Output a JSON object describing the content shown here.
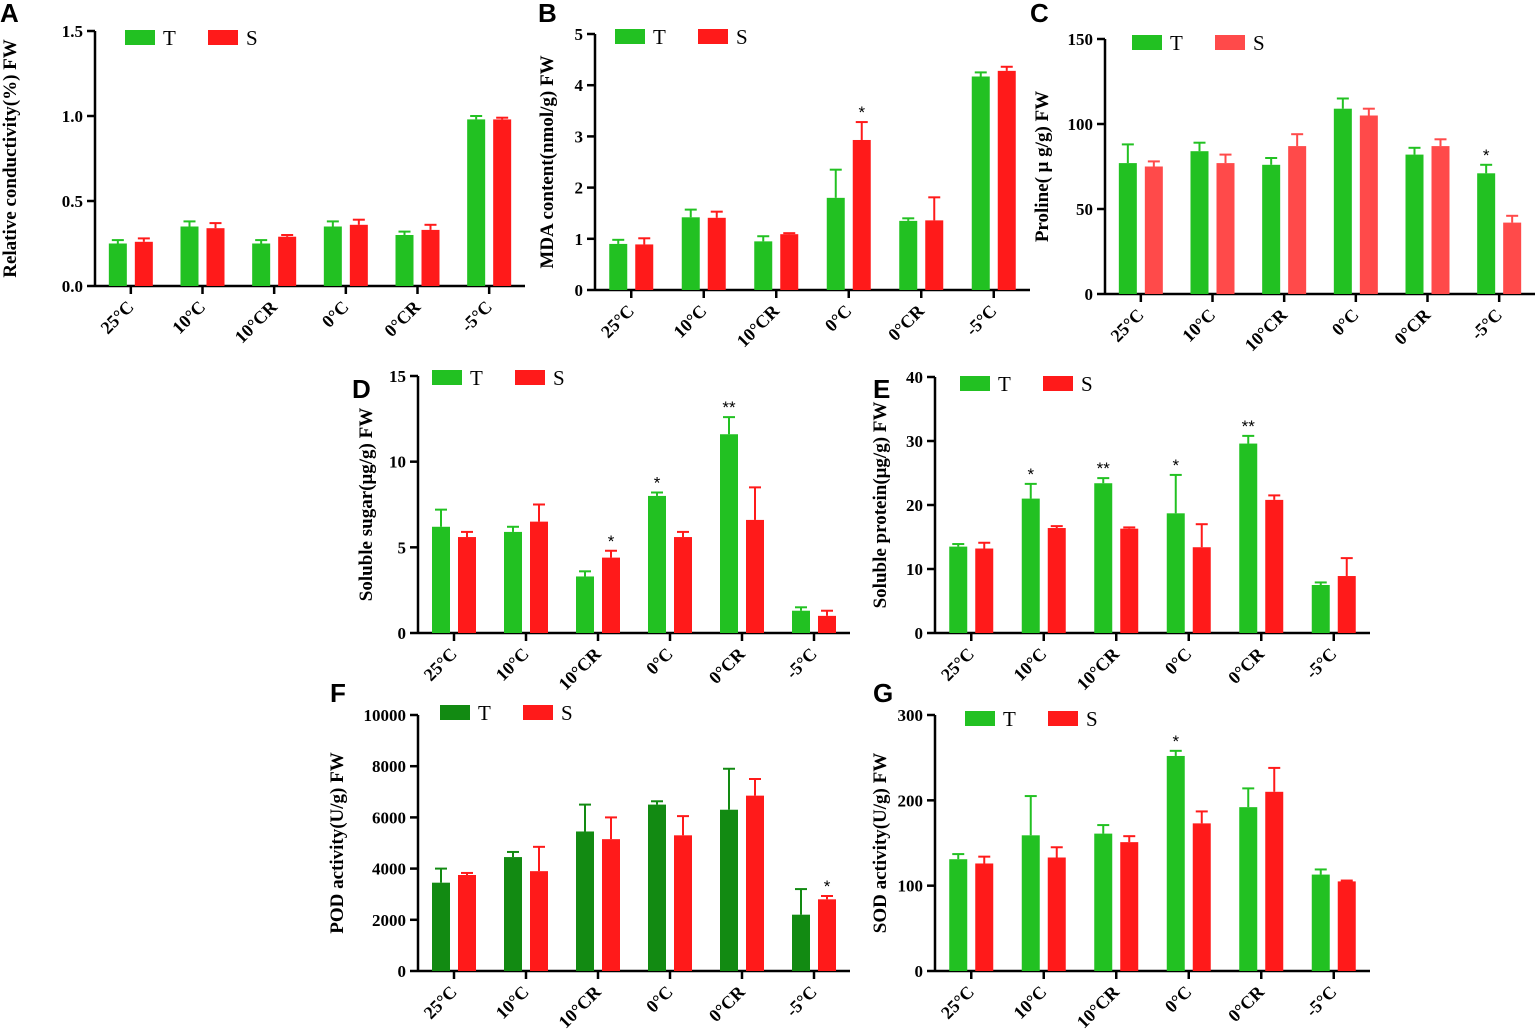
{
  "figure": {
    "panel_letters": [
      "A",
      "B",
      "C",
      "D",
      "E",
      "F",
      "G"
    ],
    "categories": [
      "25°C",
      "10°C",
      "10°CR",
      "0°C",
      "0°CR",
      "-5°C"
    ],
    "legend": [
      "T",
      "S"
    ]
  },
  "chart_data": [
    {
      "type": "bar",
      "panel": "A",
      "title": "",
      "xlabel": "",
      "ylabel": "Relative conductivity(%) FW",
      "ylim": [
        0,
        1.5
      ],
      "yticks": [
        0.0,
        0.5,
        1.0,
        1.5
      ],
      "ytick_labels": [
        "0.0",
        "0.5",
        "1.0",
        "1.5"
      ],
      "categories": [
        "25°C",
        "10°C",
        "10°CR",
        "0°C",
        "0°CR",
        "-5°C"
      ],
      "series": [
        {
          "name": "T",
          "color": "#22c122",
          "values": [
            0.25,
            0.35,
            0.25,
            0.35,
            0.3,
            0.98
          ],
          "errors": [
            0.02,
            0.03,
            0.02,
            0.03,
            0.02,
            0.02
          ],
          "significance": [
            "",
            "",
            "",
            "",
            "",
            ""
          ]
        },
        {
          "name": "S",
          "color": "#ff1a1a",
          "values": [
            0.26,
            0.34,
            0.29,
            0.36,
            0.33,
            0.98
          ],
          "errors": [
            0.02,
            0.03,
            0.01,
            0.03,
            0.03,
            0.01
          ],
          "significance": [
            "",
            "",
            "",
            "",
            "",
            ""
          ]
        }
      ],
      "legend_position": "top-left"
    },
    {
      "type": "bar",
      "panel": "B",
      "title": "",
      "xlabel": "",
      "ylabel": "MDA content(nmol/g) FW",
      "ylim": [
        0,
        5
      ],
      "yticks": [
        0,
        1,
        2,
        3,
        4,
        5
      ],
      "ytick_labels": [
        "0",
        "1",
        "2",
        "3",
        "4",
        "5"
      ],
      "categories": [
        "25°C",
        "10°C",
        "10°CR",
        "0°C",
        "0°CR",
        "-5°C"
      ],
      "series": [
        {
          "name": "T",
          "color": "#22c122",
          "values": [
            0.9,
            1.42,
            0.95,
            1.8,
            1.35,
            4.17
          ],
          "errors": [
            0.08,
            0.15,
            0.1,
            0.55,
            0.05,
            0.08
          ],
          "significance": [
            "",
            "",
            "",
            "",
            "",
            ""
          ]
        },
        {
          "name": "S",
          "color": "#ff1a1a",
          "values": [
            0.89,
            1.41,
            1.09,
            2.93,
            1.36,
            4.28
          ],
          "errors": [
            0.12,
            0.12,
            0.02,
            0.35,
            0.45,
            0.08
          ],
          "significance": [
            "",
            "",
            "",
            "*",
            "",
            ""
          ]
        }
      ],
      "legend_position": "top-left"
    },
    {
      "type": "bar",
      "panel": "C",
      "title": "",
      "xlabel": "",
      "ylabel": "Proline( μ g/g) FW",
      "ylim": [
        0,
        150
      ],
      "yticks": [
        0,
        50,
        100,
        150
      ],
      "ytick_labels": [
        "0",
        "50",
        "100",
        "150"
      ],
      "categories": [
        "25°C",
        "10°C",
        "10°CR",
        "0°C",
        "0°CR",
        "-5°C"
      ],
      "series": [
        {
          "name": "T",
          "color": "#22c122",
          "values": [
            77,
            84,
            76,
            109,
            82,
            71
          ],
          "errors": [
            11,
            5,
            4,
            6,
            4,
            5
          ],
          "significance": [
            "",
            "",
            "",
            "",
            "",
            "*"
          ]
        },
        {
          "name": "S",
          "color": "#ff4a4a",
          "values": [
            75,
            77,
            87,
            105,
            87,
            42
          ],
          "errors": [
            3,
            5,
            7,
            4,
            4,
            4
          ],
          "significance": [
            "",
            "",
            "",
            "",
            "",
            ""
          ]
        }
      ],
      "legend_position": "top-left"
    },
    {
      "type": "bar",
      "panel": "D",
      "title": "",
      "xlabel": "",
      "ylabel": "Soluble sugar(μg/g) FW",
      "ylim": [
        0,
        15
      ],
      "yticks": [
        0,
        5,
        10,
        15
      ],
      "ytick_labels": [
        "0",
        "5",
        "10",
        "15"
      ],
      "categories": [
        "25°C",
        "10°C",
        "10°CR",
        "0°C",
        "0°CR",
        "-5°C"
      ],
      "series": [
        {
          "name": "T",
          "color": "#22c122",
          "values": [
            6.2,
            5.9,
            3.3,
            8.0,
            11.6,
            1.3
          ],
          "errors": [
            1.0,
            0.3,
            0.3,
            0.2,
            1.0,
            0.2
          ],
          "significance": [
            "",
            "",
            "",
            "*",
            "**",
            ""
          ]
        },
        {
          "name": "S",
          "color": "#ff1a1a",
          "values": [
            5.6,
            6.5,
            4.4,
            5.6,
            6.6,
            1.0
          ],
          "errors": [
            0.3,
            1.0,
            0.4,
            0.3,
            1.9,
            0.3
          ],
          "significance": [
            "",
            "",
            "*",
            "",
            "",
            ""
          ]
        }
      ],
      "legend_position": "top-left"
    },
    {
      "type": "bar",
      "panel": "E",
      "title": "",
      "xlabel": "",
      "ylabel": "Soluble protein(μg/g) FW",
      "ylim": [
        0,
        40
      ],
      "yticks": [
        0,
        10,
        20,
        30,
        40
      ],
      "ytick_labels": [
        "0",
        "10",
        "20",
        "30",
        "40"
      ],
      "categories": [
        "25°C",
        "10°C",
        "10°CR",
        "0°C",
        "0°CR",
        "-5°C"
      ],
      "series": [
        {
          "name": "T",
          "color": "#22c122",
          "values": [
            13.5,
            21.0,
            23.4,
            18.7,
            29.6,
            7.5
          ],
          "errors": [
            0.4,
            2.3,
            0.8,
            6.0,
            1.2,
            0.4
          ],
          "significance": [
            "",
            "*",
            "**",
            "*",
            "**",
            ""
          ]
        },
        {
          "name": "S",
          "color": "#ff1a1a",
          "values": [
            13.2,
            16.4,
            16.3,
            13.4,
            20.8,
            8.9
          ],
          "errors": [
            0.9,
            0.3,
            0.2,
            3.6,
            0.7,
            2.8
          ],
          "significance": [
            "",
            "",
            "",
            "",
            "",
            ""
          ]
        }
      ],
      "legend_position": "top-left"
    },
    {
      "type": "bar",
      "panel": "F",
      "title": "",
      "xlabel": "",
      "ylabel": "POD activity(U/g) FW",
      "ylim": [
        0,
        10000
      ],
      "yticks": [
        0,
        2000,
        4000,
        6000,
        8000,
        10000
      ],
      "ytick_labels": [
        "0",
        "2000",
        "4000",
        "6000",
        "8000",
        "10000"
      ],
      "categories": [
        "25°C",
        "10°C",
        "10°CR",
        "0°C",
        "0°CR",
        "-5°C"
      ],
      "series": [
        {
          "name": "T",
          "color": "#128a12",
          "values": [
            3450,
            4450,
            5450,
            6500,
            6300,
            2200
          ],
          "errors": [
            550,
            200,
            1050,
            130,
            1600,
            1000
          ],
          "significance": [
            "",
            "",
            "",
            "",
            "",
            ""
          ]
        },
        {
          "name": "S",
          "color": "#ff1a1a",
          "values": [
            3750,
            3900,
            5150,
            5300,
            6850,
            2800
          ],
          "errors": [
            80,
            950,
            850,
            750,
            650,
            130
          ],
          "significance": [
            "",
            "",
            "",
            "",
            "",
            "*"
          ]
        }
      ],
      "legend_position": "top-left"
    },
    {
      "type": "bar",
      "panel": "G",
      "title": "",
      "xlabel": "",
      "ylabel": "SOD activity(U/g) FW",
      "ylim": [
        0,
        300
      ],
      "yticks": [
        0,
        100,
        200,
        300
      ],
      "ytick_labels": [
        "0",
        "100",
        "200",
        "300"
      ],
      "categories": [
        "25°C",
        "10°C",
        "10°CR",
        "0°C",
        "0°CR",
        "-5°C"
      ],
      "series": [
        {
          "name": "T",
          "color": "#22c122",
          "values": [
            131,
            159,
            161,
            252,
            192,
            113
          ],
          "errors": [
            6,
            46,
            10,
            6,
            22,
            6
          ],
          "significance": [
            "",
            "",
            "",
            "*",
            "",
            ""
          ]
        },
        {
          "name": "S",
          "color": "#ff1a1a",
          "values": [
            126,
            133,
            151,
            173,
            210,
            105
          ],
          "errors": [
            8,
            12,
            7,
            14,
            28,
            1
          ],
          "significance": [
            "",
            "",
            "",
            "",
            "",
            ""
          ]
        }
      ],
      "legend_position": "top-left"
    }
  ]
}
